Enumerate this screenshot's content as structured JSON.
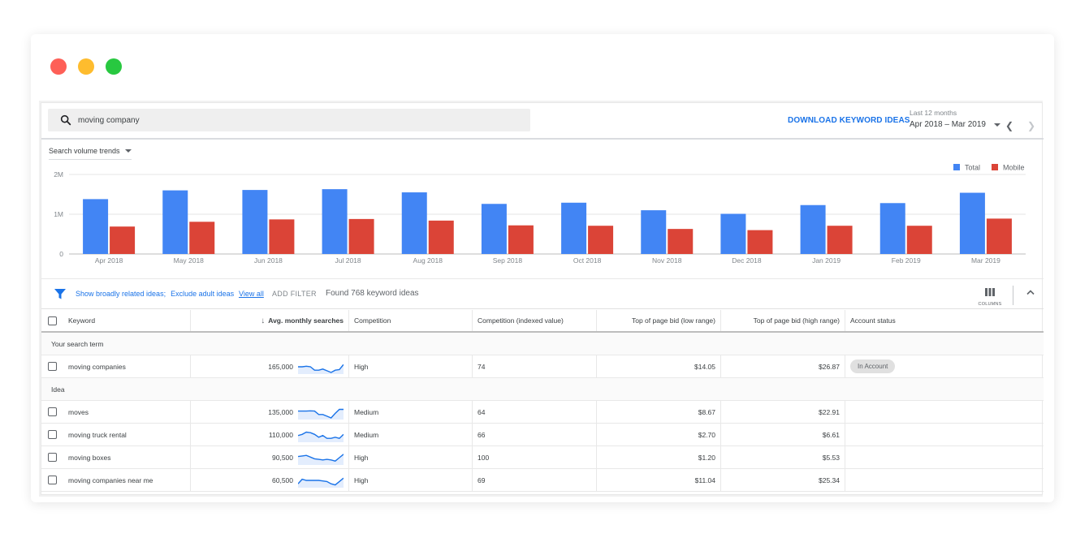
{
  "window": {
    "dot_colors": [
      "#fe5f57",
      "#febc2e",
      "#28c840"
    ]
  },
  "search": {
    "value": "moving company"
  },
  "toolbar": {
    "download_label": "DOWNLOAD KEYWORD IDEAS",
    "range_caption": "Last 12 months",
    "range_value": "Apr 2018 – Mar 2019"
  },
  "trends": {
    "label": "Search volume trends"
  },
  "chart_data": {
    "type": "bar",
    "categories": [
      "Apr 2018",
      "May 2018",
      "Jun 2018",
      "Jul 2018",
      "Aug 2018",
      "Sep 2018",
      "Oct 2018",
      "Nov 2018",
      "Dec 2018",
      "Jan 2019",
      "Feb 2019",
      "Mar 2019"
    ],
    "series": [
      {
        "name": "Total",
        "color": "#4285f4",
        "values": [
          1380000,
          1600000,
          1610000,
          1630000,
          1550000,
          1260000,
          1290000,
          1100000,
          1010000,
          1230000,
          1280000,
          1540000
        ]
      },
      {
        "name": "Mobile",
        "color": "#db4437",
        "values": [
          690000,
          810000,
          870000,
          880000,
          840000,
          720000,
          710000,
          630000,
          600000,
          710000,
          710000,
          890000
        ]
      }
    ],
    "yticks": [
      "0",
      "1M",
      "2M"
    ],
    "ytick_values": [
      0,
      1000000,
      2000000
    ],
    "ylim": [
      0,
      2000000
    ],
    "grid": true,
    "legend_position": "top-right"
  },
  "filter": {
    "link1": "Show broadly related ideas;",
    "link2": "Exclude adult ideas",
    "view_all": "View all",
    "add_filter": "ADD FILTER",
    "found": "Found 768 keyword ideas",
    "columns_label": "COLUMNS"
  },
  "table": {
    "headers": {
      "keyword": "Keyword",
      "avg": "Avg. monthly searches",
      "competition": "Competition",
      "comp_index": "Competition (indexed value)",
      "bid_low": "Top of page bid (low range)",
      "bid_high": "Top of page bid (high range)",
      "account_status": "Account status"
    },
    "group_search_term": "Your search term",
    "group_ideas": "Idea",
    "search_term_row": {
      "keyword": "moving companies",
      "avg": "165,000",
      "competition": "High",
      "comp_index": "74",
      "bid_low": "$14.05",
      "bid_high": "$26.87",
      "status": "In Account",
      "trend": [
        0.5,
        0.5,
        0.55,
        0.5,
        0.2,
        0.2,
        0.3,
        0.15,
        0.0,
        0.2,
        0.25,
        0.7
      ]
    },
    "ideas": [
      {
        "keyword": "moves",
        "avg": "135,000",
        "competition": "Medium",
        "comp_index": "64",
        "bid_low": "$8.67",
        "bid_high": "$22.91",
        "trend": [
          0.6,
          0.6,
          0.6,
          0.62,
          0.6,
          0.3,
          0.3,
          0.15,
          0.0,
          0.4,
          0.75,
          0.75
        ]
      },
      {
        "keyword": "moving truck rental",
        "avg": "110,000",
        "competition": "Medium",
        "comp_index": "66",
        "bid_low": "$2.70",
        "bid_high": "$6.61",
        "trend": [
          0.45,
          0.55,
          0.75,
          0.7,
          0.55,
          0.3,
          0.45,
          0.2,
          0.2,
          0.3,
          0.2,
          0.55
        ]
      },
      {
        "keyword": "moving boxes",
        "avg": "90,500",
        "competition": "High",
        "comp_index": "100",
        "bid_low": "$1.20",
        "bid_high": "$5.53",
        "trend": [
          0.6,
          0.65,
          0.7,
          0.55,
          0.4,
          0.35,
          0.3,
          0.35,
          0.3,
          0.2,
          0.5,
          0.8
        ]
      },
      {
        "keyword": "moving companies near me",
        "avg": "60,500",
        "competition": "High",
        "comp_index": "69",
        "bid_low": "$11.04",
        "bid_high": "$25.34",
        "trend": [
          0.2,
          0.6,
          0.5,
          0.5,
          0.5,
          0.5,
          0.45,
          0.4,
          0.2,
          0.1,
          0.4,
          0.7
        ]
      }
    ]
  }
}
